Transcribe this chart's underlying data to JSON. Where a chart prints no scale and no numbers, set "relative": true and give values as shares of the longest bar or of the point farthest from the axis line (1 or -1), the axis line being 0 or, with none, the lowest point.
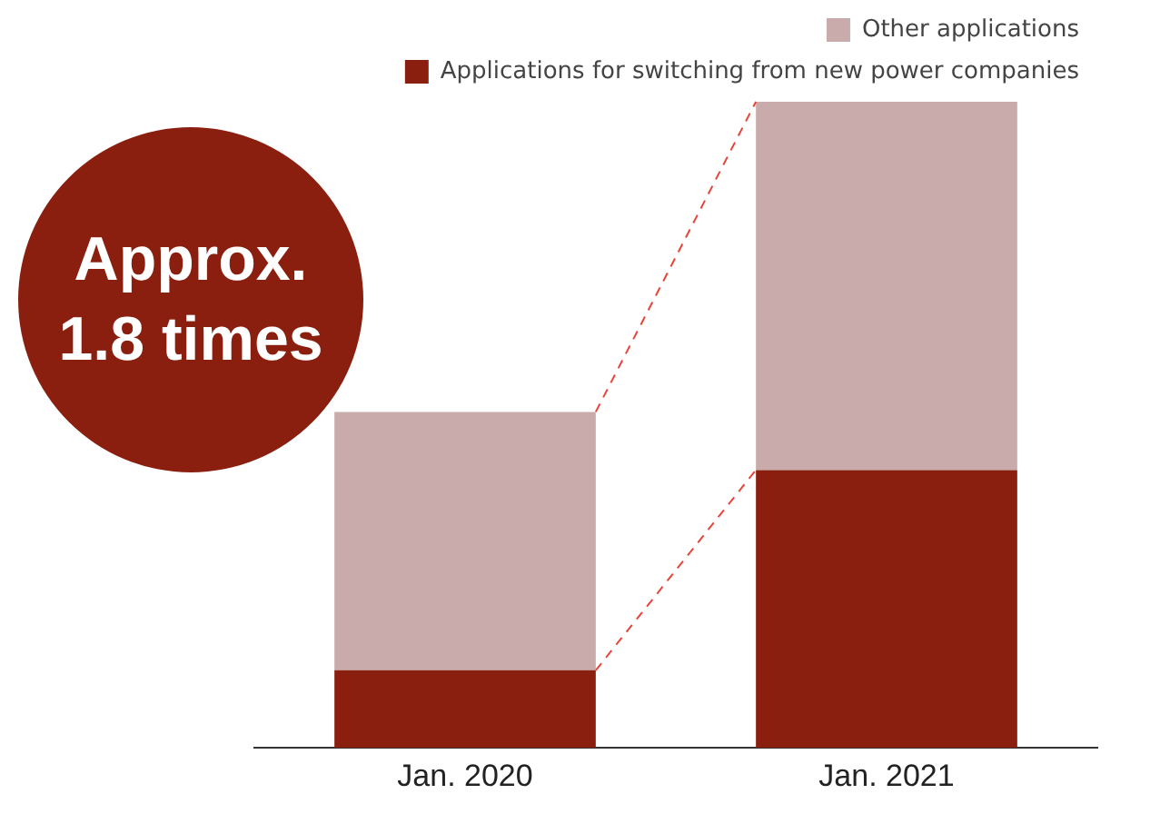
{
  "chart_data": {
    "type": "bar",
    "stacked": true,
    "relative": true,
    "categories": [
      "Jan. 2020",
      "Jan. 2021"
    ],
    "series": [
      {
        "name": "Applications for switching from new power companies",
        "color": "#8a1f0f",
        "values": [
          0.12,
          0.43
        ]
      },
      {
        "name": "Other applications",
        "color": "#c8abaa",
        "values": [
          0.4,
          0.57
        ]
      }
    ],
    "legend": "top",
    "grid": false,
    "annotations": [
      "Approx. 1.8 times"
    ]
  }
}
